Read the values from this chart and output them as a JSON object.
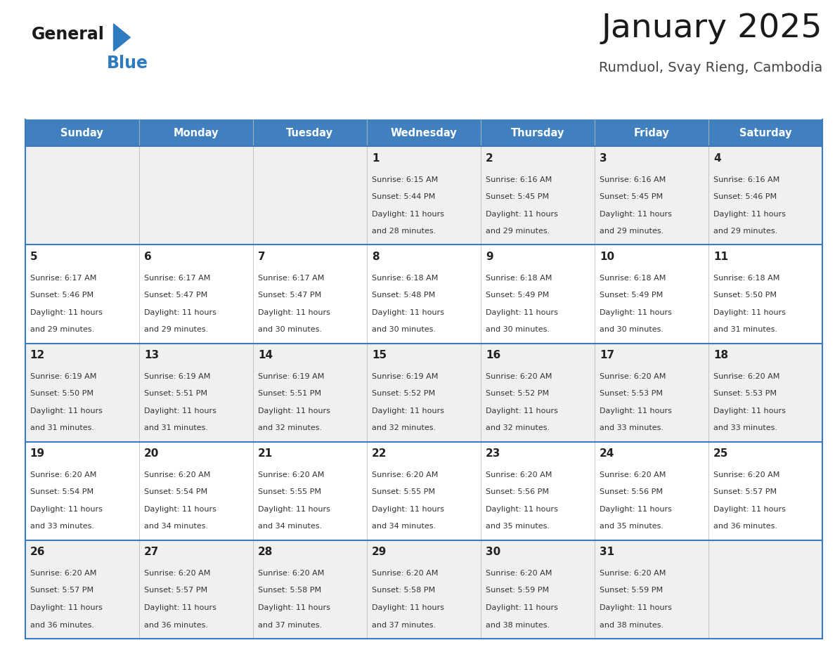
{
  "title": "January 2025",
  "subtitle": "Rumduol, Svay Rieng, Cambodia",
  "days_of_week": [
    "Sunday",
    "Monday",
    "Tuesday",
    "Wednesday",
    "Thursday",
    "Friday",
    "Saturday"
  ],
  "header_bg": "#4080bf",
  "header_text": "#ffffff",
  "row_bg_odd": "#f0f0f0",
  "row_bg_even": "#ffffff",
  "cell_border": "#3a7abf",
  "day_num_color": "#222222",
  "text_color": "#333333",
  "calendar": [
    [
      {
        "day": "",
        "sunrise": "",
        "sunset": "",
        "daylight_h": "",
        "daylight_m": ""
      },
      {
        "day": "",
        "sunrise": "",
        "sunset": "",
        "daylight_h": "",
        "daylight_m": ""
      },
      {
        "day": "",
        "sunrise": "",
        "sunset": "",
        "daylight_h": "",
        "daylight_m": ""
      },
      {
        "day": "1",
        "sunrise": "6:15 AM",
        "sunset": "5:44 PM",
        "daylight_h": "11",
        "daylight_m": "28"
      },
      {
        "day": "2",
        "sunrise": "6:16 AM",
        "sunset": "5:45 PM",
        "daylight_h": "11",
        "daylight_m": "29"
      },
      {
        "day": "3",
        "sunrise": "6:16 AM",
        "sunset": "5:45 PM",
        "daylight_h": "11",
        "daylight_m": "29"
      },
      {
        "day": "4",
        "sunrise": "6:16 AM",
        "sunset": "5:46 PM",
        "daylight_h": "11",
        "daylight_m": "29"
      }
    ],
    [
      {
        "day": "5",
        "sunrise": "6:17 AM",
        "sunset": "5:46 PM",
        "daylight_h": "11",
        "daylight_m": "29"
      },
      {
        "day": "6",
        "sunrise": "6:17 AM",
        "sunset": "5:47 PM",
        "daylight_h": "11",
        "daylight_m": "29"
      },
      {
        "day": "7",
        "sunrise": "6:17 AM",
        "sunset": "5:47 PM",
        "daylight_h": "11",
        "daylight_m": "30"
      },
      {
        "day": "8",
        "sunrise": "6:18 AM",
        "sunset": "5:48 PM",
        "daylight_h": "11",
        "daylight_m": "30"
      },
      {
        "day": "9",
        "sunrise": "6:18 AM",
        "sunset": "5:49 PM",
        "daylight_h": "11",
        "daylight_m": "30"
      },
      {
        "day": "10",
        "sunrise": "6:18 AM",
        "sunset": "5:49 PM",
        "daylight_h": "11",
        "daylight_m": "30"
      },
      {
        "day": "11",
        "sunrise": "6:18 AM",
        "sunset": "5:50 PM",
        "daylight_h": "11",
        "daylight_m": "31"
      }
    ],
    [
      {
        "day": "12",
        "sunrise": "6:19 AM",
        "sunset": "5:50 PM",
        "daylight_h": "11",
        "daylight_m": "31"
      },
      {
        "day": "13",
        "sunrise": "6:19 AM",
        "sunset": "5:51 PM",
        "daylight_h": "11",
        "daylight_m": "31"
      },
      {
        "day": "14",
        "sunrise": "6:19 AM",
        "sunset": "5:51 PM",
        "daylight_h": "11",
        "daylight_m": "32"
      },
      {
        "day": "15",
        "sunrise": "6:19 AM",
        "sunset": "5:52 PM",
        "daylight_h": "11",
        "daylight_m": "32"
      },
      {
        "day": "16",
        "sunrise": "6:20 AM",
        "sunset": "5:52 PM",
        "daylight_h": "11",
        "daylight_m": "32"
      },
      {
        "day": "17",
        "sunrise": "6:20 AM",
        "sunset": "5:53 PM",
        "daylight_h": "11",
        "daylight_m": "33"
      },
      {
        "day": "18",
        "sunrise": "6:20 AM",
        "sunset": "5:53 PM",
        "daylight_h": "11",
        "daylight_m": "33"
      }
    ],
    [
      {
        "day": "19",
        "sunrise": "6:20 AM",
        "sunset": "5:54 PM",
        "daylight_h": "11",
        "daylight_m": "33"
      },
      {
        "day": "20",
        "sunrise": "6:20 AM",
        "sunset": "5:54 PM",
        "daylight_h": "11",
        "daylight_m": "34"
      },
      {
        "day": "21",
        "sunrise": "6:20 AM",
        "sunset": "5:55 PM",
        "daylight_h": "11",
        "daylight_m": "34"
      },
      {
        "day": "22",
        "sunrise": "6:20 AM",
        "sunset": "5:55 PM",
        "daylight_h": "11",
        "daylight_m": "34"
      },
      {
        "day": "23",
        "sunrise": "6:20 AM",
        "sunset": "5:56 PM",
        "daylight_h": "11",
        "daylight_m": "35"
      },
      {
        "day": "24",
        "sunrise": "6:20 AM",
        "sunset": "5:56 PM",
        "daylight_h": "11",
        "daylight_m": "35"
      },
      {
        "day": "25",
        "sunrise": "6:20 AM",
        "sunset": "5:57 PM",
        "daylight_h": "11",
        "daylight_m": "36"
      }
    ],
    [
      {
        "day": "26",
        "sunrise": "6:20 AM",
        "sunset": "5:57 PM",
        "daylight_h": "11",
        "daylight_m": "36"
      },
      {
        "day": "27",
        "sunrise": "6:20 AM",
        "sunset": "5:57 PM",
        "daylight_h": "11",
        "daylight_m": "36"
      },
      {
        "day": "28",
        "sunrise": "6:20 AM",
        "sunset": "5:58 PM",
        "daylight_h": "11",
        "daylight_m": "37"
      },
      {
        "day": "29",
        "sunrise": "6:20 AM",
        "sunset": "5:58 PM",
        "daylight_h": "11",
        "daylight_m": "37"
      },
      {
        "day": "30",
        "sunrise": "6:20 AM",
        "sunset": "5:59 PM",
        "daylight_h": "11",
        "daylight_m": "38"
      },
      {
        "day": "31",
        "sunrise": "6:20 AM",
        "sunset": "5:59 PM",
        "daylight_h": "11",
        "daylight_m": "38"
      },
      {
        "day": "",
        "sunrise": "",
        "sunset": "",
        "daylight_h": "",
        "daylight_m": ""
      }
    ]
  ],
  "logo_general_color": "#1a1a1a",
  "logo_blue_color": "#2e7bbf",
  "title_color": "#1a1a1a",
  "subtitle_color": "#444444"
}
